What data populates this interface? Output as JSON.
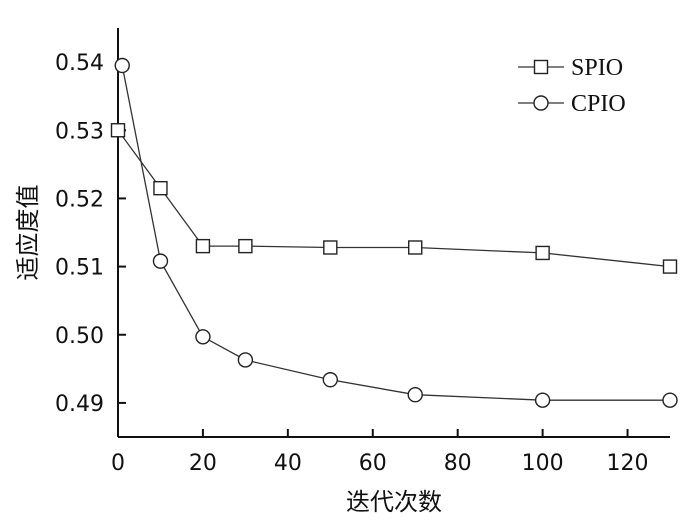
{
  "chart_data": {
    "type": "line",
    "xlabel": "迭代次数",
    "ylabel": "适应度值",
    "xlim": [
      0,
      130
    ],
    "ylim": [
      0.485,
      0.545
    ],
    "x_ticks": [
      0,
      20,
      40,
      60,
      80,
      100,
      120
    ],
    "y_ticks": [
      0.49,
      0.5,
      0.51,
      0.52,
      0.53,
      0.54
    ],
    "y_tick_labels": [
      "0.49",
      "0.50",
      "0.51",
      "0.52",
      "0.53",
      "0.54"
    ],
    "grid": false,
    "legend_position": "top-right",
    "series": [
      {
        "name": "SPIO",
        "marker": "square",
        "x": [
          0,
          10,
          20,
          30,
          50,
          70,
          100,
          130
        ],
        "y": [
          0.53,
          0.5215,
          0.513,
          0.513,
          0.5128,
          0.5128,
          0.512,
          0.51
        ]
      },
      {
        "name": "CPIO",
        "marker": "circle",
        "x": [
          1,
          10,
          20,
          30,
          50,
          70,
          100,
          130
        ],
        "y": [
          0.5395,
          0.5108,
          0.4997,
          0.4963,
          0.4934,
          0.4912,
          0.4904,
          0.4904
        ]
      }
    ]
  }
}
